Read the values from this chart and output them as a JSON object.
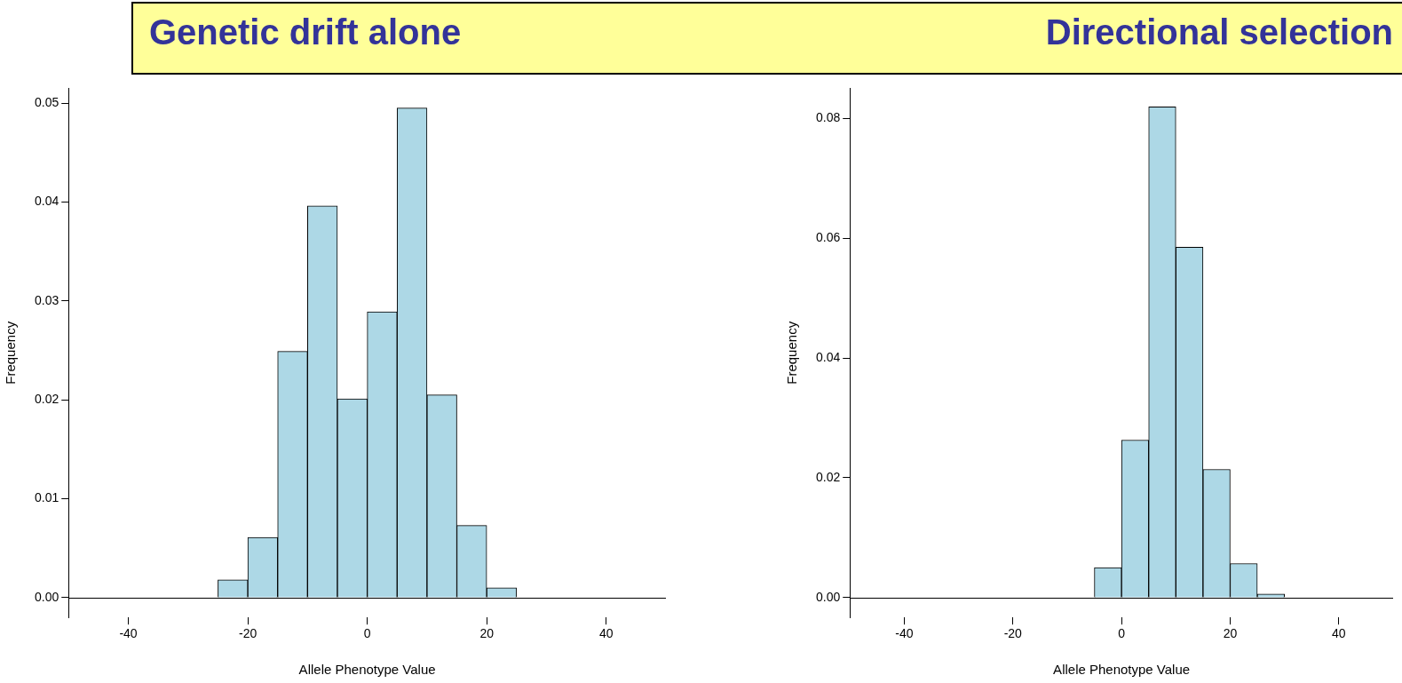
{
  "chart_data": [
    {
      "type": "histogram",
      "title": "Genetic drift alone",
      "xlabel": "Allele Phenotype Value",
      "ylabel": "Frequency",
      "color": "#add8e6",
      "bins": [
        -50,
        -45,
        -40,
        -35,
        -30,
        -25,
        -20,
        -15,
        -10,
        -5,
        0,
        5,
        10,
        15,
        20,
        25,
        30,
        35,
        40,
        45,
        50
      ],
      "values": [
        0,
        0,
        0,
        0,
        0,
        0.0018,
        0.0061,
        0.0249,
        0.0396,
        0.0201,
        0.0289,
        0.0495,
        0.0205,
        0.0073,
        0.001,
        0,
        0,
        0,
        0,
        0
      ],
      "xlim": [
        -50,
        50
      ],
      "xticks": [
        -40,
        -20,
        0,
        20,
        40
      ],
      "ylim": [
        -0.002,
        0.0515
      ],
      "yticks": [
        {
          "value": 0,
          "label": "0.00"
        },
        0.01,
        0.02,
        0.03,
        0.04,
        0.05
      ]
    },
    {
      "type": "histogram",
      "title": "Directional selection",
      "xlabel": "Allele Phenotype Value",
      "ylabel": "Frequency",
      "color": "#add8e6",
      "bins": [
        -50,
        -45,
        -40,
        -35,
        -30,
        -25,
        -20,
        -15,
        -10,
        -5,
        0,
        5,
        10,
        15,
        20,
        25,
        30,
        35,
        40,
        45,
        50
      ],
      "values": [
        0,
        0,
        0,
        0,
        0,
        0,
        0,
        0,
        0,
        0.005,
        0.0263,
        0.0819,
        0.0585,
        0.0214,
        0.0057,
        0.0006,
        0,
        0,
        0,
        0
      ],
      "xlim": [
        -50,
        50
      ],
      "xticks": [
        -40,
        -20,
        0,
        20,
        40
      ],
      "ylim": [
        -0.0033,
        0.085
      ],
      "yticks": [
        {
          "value": 0,
          "label": "0.00"
        },
        0.02,
        0.04,
        0.06,
        0.08
      ]
    }
  ]
}
